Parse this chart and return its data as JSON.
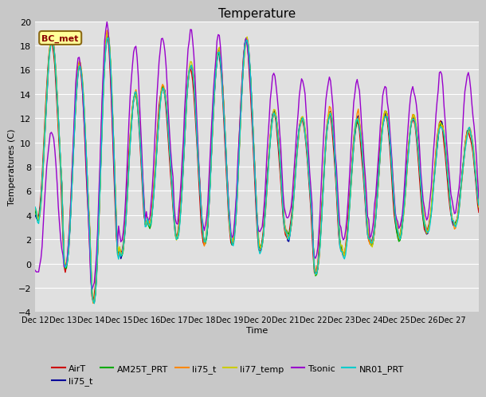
{
  "title": "Temperature",
  "xlabel": "Time",
  "ylabel": "Temperatures (C)",
  "ylim": [
    -4,
    20
  ],
  "xlim": [
    0,
    383
  ],
  "fig_bg": "#c8c8c8",
  "plot_bg": "#e0e0e0",
  "annotation_text": "BC_met",
  "annotation_bg": "#ffff99",
  "annotation_border": "#8B6914",
  "annotation_text_color": "#8B0000",
  "x_tick_labels": [
    "Dec 12",
    "Dec 13",
    "Dec 14",
    "Dec 15",
    "Dec 16",
    "Dec 17",
    "Dec 18",
    "Dec 19",
    "Dec 20",
    "Dec 21",
    "Dec 22",
    "Dec 23",
    "Dec 24",
    "Dec 25",
    "Dec 26",
    "Dec 27"
  ],
  "x_tick_positions": [
    0,
    24,
    48,
    72,
    96,
    120,
    144,
    168,
    192,
    216,
    240,
    264,
    288,
    312,
    336,
    360
  ],
  "series_colors": {
    "AirT": "#cc0000",
    "li75_t_blue": "#000099",
    "AM25T_PRT": "#00aa00",
    "li75_t_orange": "#ff8800",
    "li77_temp": "#cccc00",
    "Tsonic": "#9900cc",
    "NR01_PRT": "#00cccc"
  },
  "legend_entries": [
    {
      "label": "AirT",
      "color": "#cc0000"
    },
    {
      "label": "li75_t",
      "color": "#000099"
    },
    {
      "label": "AM25T_PRT",
      "color": "#00aa00"
    },
    {
      "label": "li75_t",
      "color": "#ff8800"
    },
    {
      "label": "li77_temp",
      "color": "#cccc00"
    },
    {
      "label": "Tsonic",
      "color": "#9900cc"
    },
    {
      "label": "NR01_PRT",
      "color": "#00cccc"
    }
  ]
}
